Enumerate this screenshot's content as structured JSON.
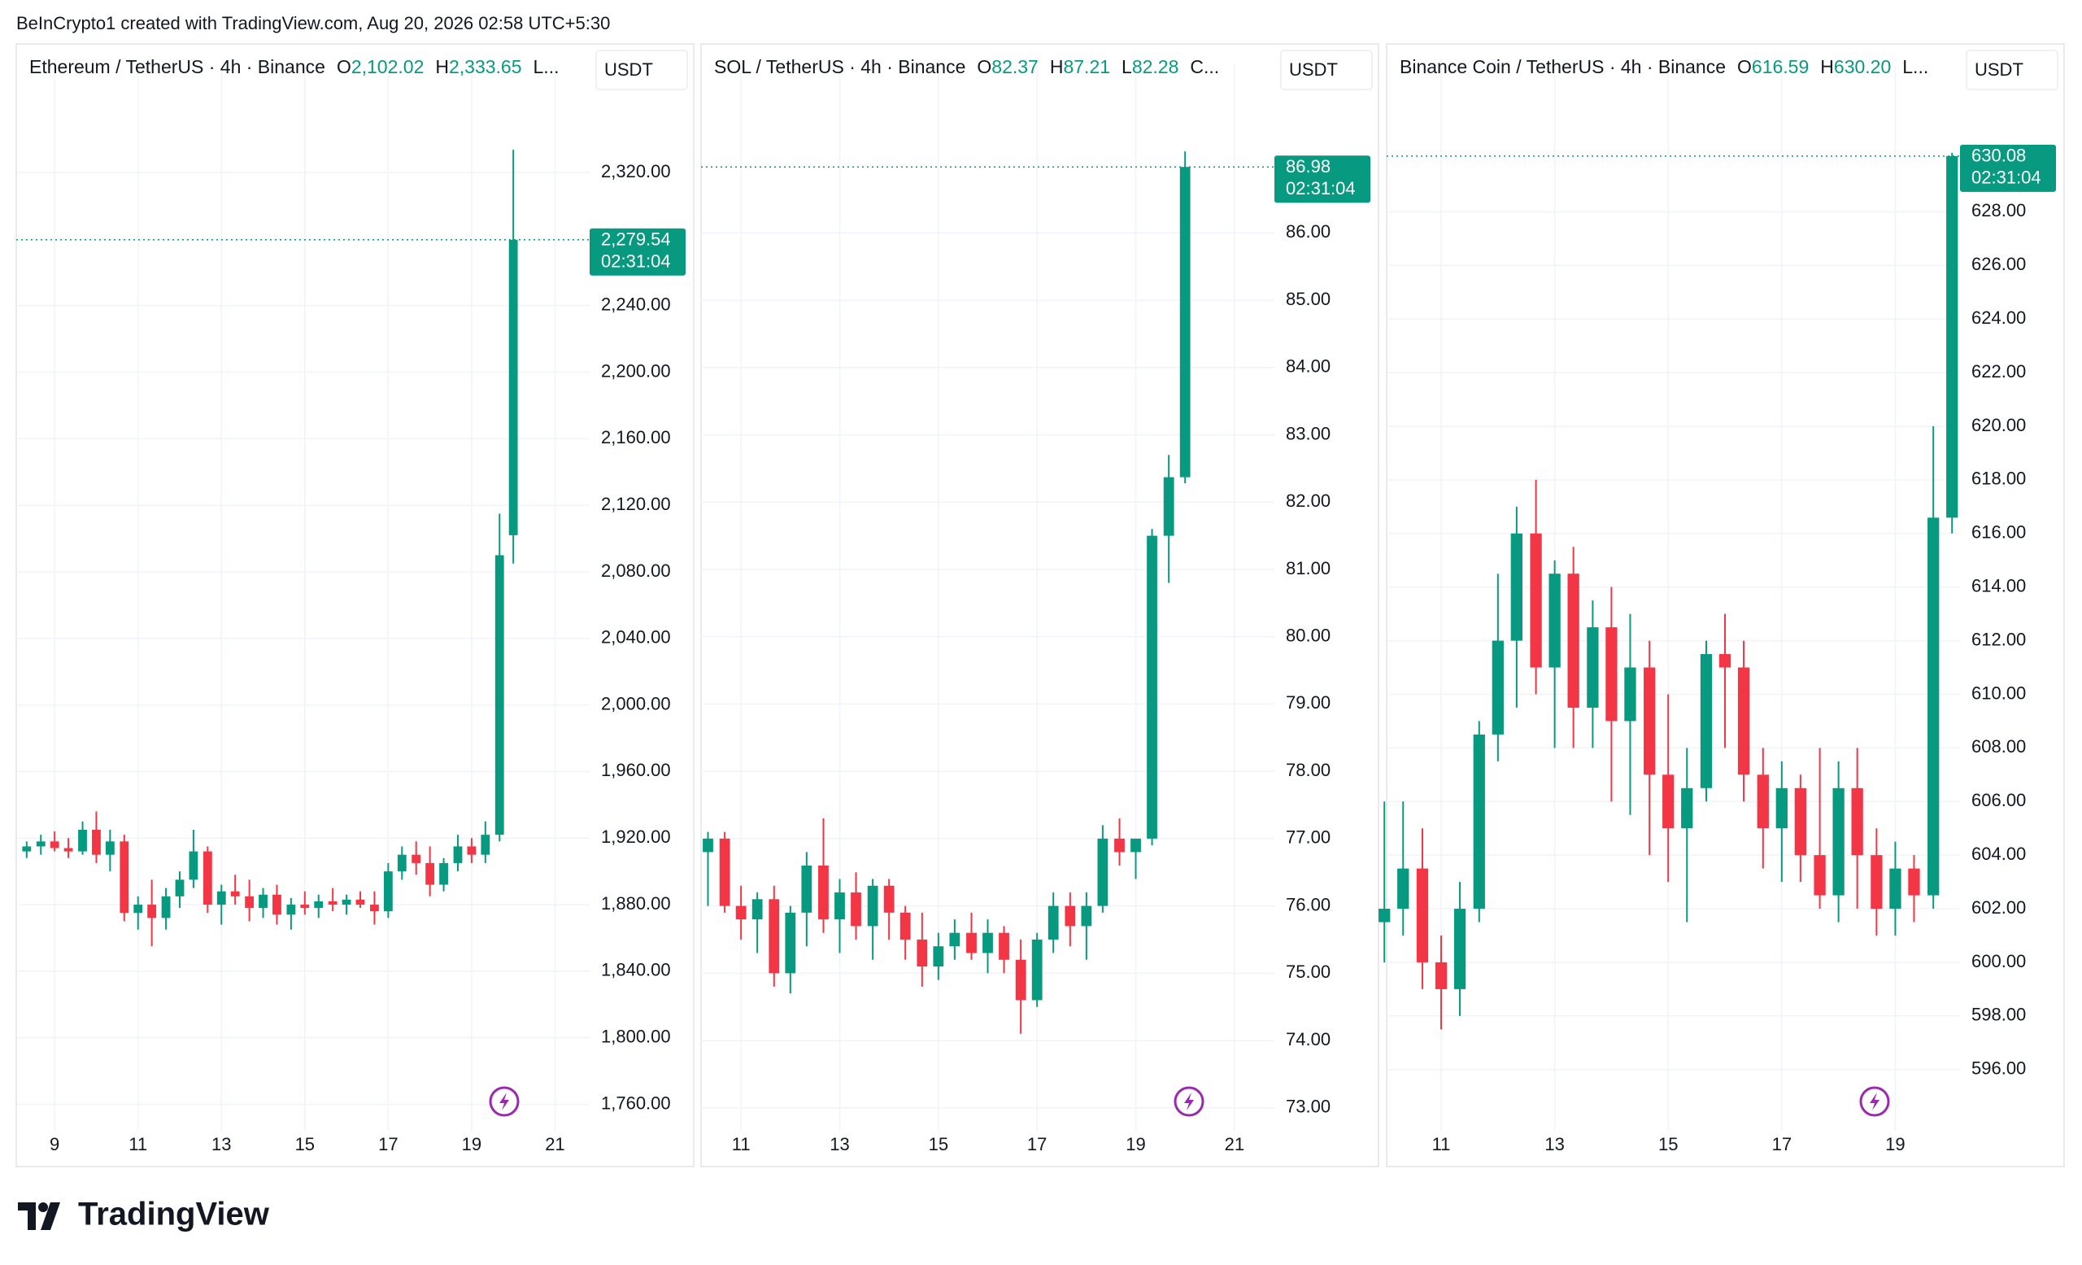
{
  "header": {
    "credit": "BeInCrypto1 created with TradingView.com, Aug 20, 2026 02:58 UTC+5:30"
  },
  "footer": {
    "brand": "TradingView"
  },
  "chart_data": [
    {
      "type": "candlestick",
      "title": "Ethereum / TetherUS · 4h · Binance",
      "ohlc_header": [
        {
          "key": "O",
          "price": {
            "value": 2102.02,
            "label": "2,102.02"
          }
        },
        {
          "key": "H",
          "price": {
            "value": 2333.65,
            "label": "2,333.65"
          }
        },
        {
          "key": "L..."
        }
      ],
      "currency": "USDT",
      "last_price": {
        "value": 2279.54,
        "label": "2,279.54"
      },
      "countdown": "02:31:04",
      "up_color": "#089981",
      "down_color": "#f23645",
      "grid": true,
      "xlim": [
        8.08,
        21.83
      ],
      "xticks": [
        9,
        11,
        13,
        15,
        17,
        19,
        21
      ],
      "ylim": [
        1749,
        2365
      ],
      "yticks": [
        {
          "value": 1760,
          "label": "1,760.00"
        },
        {
          "value": 1800,
          "label": "1,800.00"
        },
        {
          "value": 1840,
          "label": "1,840.00"
        },
        {
          "value": 1880,
          "label": "1,880.00"
        },
        {
          "value": 1920,
          "label": "1,920.00"
        },
        {
          "value": 1960,
          "label": "1,960.00"
        },
        {
          "value": 2000,
          "label": "2,000.00"
        },
        {
          "value": 2040,
          "label": "2,040.00"
        },
        {
          "value": 2080,
          "label": "2,080.00"
        },
        {
          "value": 2120,
          "label": "2,120.00"
        },
        {
          "value": 2160,
          "label": "2,160.00"
        },
        {
          "value": 2200,
          "label": "2,200.00"
        },
        {
          "value": 2240,
          "label": "2,240.00"
        },
        {
          "value": 2280,
          "label": "2,280.00"
        },
        {
          "value": 2320,
          "label": "2,320.00"
        }
      ],
      "x": [
        8.33,
        8.67,
        9.0,
        9.33,
        9.67,
        10.0,
        10.33,
        10.67,
        11.0,
        11.33,
        11.67,
        12.0,
        12.33,
        12.67,
        13.0,
        13.33,
        13.67,
        14.0,
        14.33,
        14.67,
        15.0,
        15.33,
        15.67,
        16.0,
        16.33,
        16.67,
        17.0,
        17.33,
        17.67,
        18.0,
        18.33,
        18.67,
        19.0,
        19.33,
        19.67,
        20.0
      ],
      "open": [
        1912,
        1915,
        1918,
        1914,
        1912,
        1925,
        1910,
        1918,
        1875,
        1880,
        1872,
        1885,
        1895,
        1912,
        1880,
        1888,
        1885,
        1878,
        1886,
        1874,
        1880,
        1878,
        1882,
        1880,
        1883,
        1880,
        1876,
        1900,
        1910,
        1905,
        1892,
        1905,
        1915,
        1910,
        1922,
        2102.02
      ],
      "high": [
        1918,
        1922,
        1924,
        1920,
        1930,
        1936,
        1925,
        1922,
        1885,
        1895,
        1890,
        1900,
        1925,
        1915,
        1892,
        1898,
        1895,
        1890,
        1892,
        1884,
        1888,
        1886,
        1890,
        1886,
        1888,
        1888,
        1905,
        1915,
        1918,
        1915,
        1908,
        1922,
        1920,
        1930,
        2115,
        2333.65
      ],
      "low": [
        1908,
        1910,
        1912,
        1908,
        1910,
        1905,
        1900,
        1870,
        1865,
        1855,
        1865,
        1878,
        1890,
        1875,
        1868,
        1880,
        1870,
        1872,
        1868,
        1865,
        1874,
        1872,
        1876,
        1874,
        1878,
        1868,
        1872,
        1895,
        1898,
        1885,
        1888,
        1900,
        1905,
        1905,
        1918,
        2085
      ],
      "close": [
        1915,
        1918,
        1914,
        1912,
        1925,
        1910,
        1918,
        1875,
        1880,
        1872,
        1885,
        1895,
        1912,
        1880,
        1888,
        1885,
        1878,
        1886,
        1874,
        1880,
        1878,
        1882,
        1880,
        1883,
        1880,
        1876,
        1900,
        1910,
        1905,
        1892,
        1905,
        1915,
        1910,
        1922,
        2090,
        2279.54
      ]
    },
    {
      "type": "candlestick",
      "title": "SOL / TetherUS · 4h · Binance",
      "ohlc_header": [
        {
          "key": "O",
          "price": 82.37
        },
        {
          "key": "H",
          "price": 87.21
        },
        {
          "key": "L",
          "price": 82.28
        },
        {
          "key": "C..."
        }
      ],
      "currency": "USDT",
      "last_price": 86.98,
      "countdown": "02:31:04",
      "up_color": "#089981",
      "down_color": "#f23645",
      "grid": true,
      "xlim": [
        10.19,
        21.81
      ],
      "xticks": [
        11,
        13,
        15,
        17,
        19,
        21
      ],
      "ylim": [
        72.78,
        88.01
      ],
      "yticks": [
        {
          "value": 73,
          "label": "73.00"
        },
        {
          "value": 74,
          "label": "74.00"
        },
        {
          "value": 75,
          "label": "75.00"
        },
        {
          "value": 76,
          "label": "76.00"
        },
        {
          "value": 77,
          "label": "77.00"
        },
        {
          "value": 78,
          "label": "78.00"
        },
        {
          "value": 79,
          "label": "79.00"
        },
        {
          "value": 80,
          "label": "80.00"
        },
        {
          "value": 81,
          "label": "81.00"
        },
        {
          "value": 82,
          "label": "82.00"
        },
        {
          "value": 83,
          "label": "83.00"
        },
        {
          "value": 84,
          "label": "84.00"
        },
        {
          "value": 85,
          "label": "85.00"
        },
        {
          "value": 86,
          "label": "86.00"
        }
      ],
      "x": [
        10.33,
        10.67,
        11.0,
        11.33,
        11.67,
        12.0,
        12.33,
        12.67,
        13.0,
        13.33,
        13.67,
        14.0,
        14.33,
        14.67,
        15.0,
        15.33,
        15.67,
        16.0,
        16.33,
        16.67,
        17.0,
        17.33,
        17.67,
        18.0,
        18.33,
        18.67,
        19.0,
        19.33,
        19.67,
        20.0
      ],
      "open": [
        76.8,
        77.0,
        76.0,
        75.8,
        76.1,
        75.0,
        75.9,
        76.6,
        75.8,
        76.2,
        75.7,
        76.3,
        75.9,
        75.5,
        75.1,
        75.4,
        75.6,
        75.3,
        75.6,
        75.2,
        74.6,
        75.5,
        76.0,
        75.7,
        76.0,
        77.0,
        76.8,
        77.0,
        81.5,
        82.37
      ],
      "high": [
        77.1,
        77.1,
        76.3,
        76.2,
        76.3,
        76.0,
        76.8,
        77.3,
        76.4,
        76.5,
        76.4,
        76.4,
        76.0,
        75.9,
        75.6,
        75.8,
        75.9,
        75.8,
        75.7,
        75.5,
        75.6,
        76.2,
        76.2,
        76.2,
        77.2,
        77.3,
        77.0,
        81.6,
        82.7,
        87.21
      ],
      "low": [
        76.0,
        75.9,
        75.5,
        75.3,
        74.8,
        74.7,
        75.4,
        75.6,
        75.3,
        75.5,
        75.2,
        75.5,
        75.2,
        74.8,
        74.9,
        75.2,
        75.2,
        75.0,
        75.0,
        74.1,
        74.5,
        75.3,
        75.4,
        75.2,
        75.9,
        76.6,
        76.4,
        76.9,
        80.8,
        82.28
      ],
      "close": [
        77.0,
        76.0,
        75.8,
        76.1,
        75.0,
        75.9,
        76.6,
        75.8,
        76.2,
        75.7,
        76.3,
        75.9,
        75.5,
        75.1,
        75.4,
        75.6,
        75.3,
        75.6,
        75.2,
        74.6,
        75.5,
        76.0,
        75.7,
        76.0,
        77.0,
        76.8,
        77.0,
        81.5,
        82.37,
        86.98
      ]
    },
    {
      "type": "candlestick",
      "title": "Binance Coin / TetherUS · 4h · Binance",
      "ohlc_header": [
        {
          "key": "O",
          "price": 616.59
        },
        {
          "key": "H",
          "price": {
            "value": 630.2,
            "label": "630.20"
          }
        },
        {
          "key": "L..."
        }
      ],
      "currency": "USDT",
      "last_price": 630.08,
      "countdown": "02:31:04",
      "up_color": "#089981",
      "down_color": "#f23645",
      "grid": true,
      "xlim": [
        10.04,
        20.14
      ],
      "xticks": [
        11,
        13,
        15,
        17,
        19
      ],
      "ylim": [
        594.02,
        632.26
      ],
      "yticks": [
        {
          "value": 596,
          "label": "596.00"
        },
        {
          "value": 598,
          "label": "598.00"
        },
        {
          "value": 600,
          "label": "600.00"
        },
        {
          "value": 602,
          "label": "602.00"
        },
        {
          "value": 604,
          "label": "604.00"
        },
        {
          "value": 606,
          "label": "606.00"
        },
        {
          "value": 608,
          "label": "608.00"
        },
        {
          "value": 610,
          "label": "610.00"
        },
        {
          "value": 612,
          "label": "612.00"
        },
        {
          "value": 614,
          "label": "614.00"
        },
        {
          "value": 616,
          "label": "616.00"
        },
        {
          "value": 618,
          "label": "618.00"
        },
        {
          "value": 620,
          "label": "620.00"
        },
        {
          "value": 622,
          "label": "622.00"
        },
        {
          "value": 624,
          "label": "624.00"
        },
        {
          "value": 626,
          "label": "626.00"
        },
        {
          "value": 628,
          "label": "628.00"
        }
      ],
      "x": [
        10.0,
        10.33,
        10.67,
        11.0,
        11.33,
        11.67,
        12.0,
        12.33,
        12.67,
        13.0,
        13.33,
        13.67,
        14.0,
        14.33,
        14.67,
        15.0,
        15.33,
        15.67,
        16.0,
        16.33,
        16.67,
        17.0,
        17.33,
        17.67,
        18.0,
        18.33,
        18.67,
        19.0,
        19.33,
        19.67,
        20.0
      ],
      "open": [
        601.5,
        602,
        603.5,
        600,
        599,
        602,
        608.5,
        612,
        616,
        611,
        614.5,
        609.5,
        612.5,
        609,
        611,
        607,
        605,
        606.5,
        611.5,
        611,
        607,
        605,
        606.5,
        604,
        602.5,
        606.5,
        604,
        602,
        603.5,
        602.5,
        616.59
      ],
      "high": [
        606,
        606,
        605,
        601,
        603,
        609,
        614.5,
        617,
        618,
        615,
        615.5,
        613.5,
        614,
        613,
        612,
        610,
        608,
        612,
        613,
        612,
        608,
        607.5,
        607,
        608,
        607.5,
        608,
        605,
        604.5,
        604,
        620,
        630.2
      ],
      "low": [
        600,
        601,
        599,
        597.5,
        598,
        601.5,
        607.5,
        609.5,
        610,
        608,
        608,
        608,
        606,
        605.5,
        604,
        603,
        601.5,
        606,
        608,
        606,
        603.5,
        603,
        603,
        602,
        601.5,
        602,
        601,
        601,
        601.5,
        602,
        616
      ],
      "close": [
        602,
        603.5,
        600,
        599,
        602,
        608.5,
        612,
        616,
        611,
        614.5,
        609.5,
        612.5,
        609,
        611,
        607,
        605,
        606.5,
        611.5,
        611,
        607,
        605,
        606.5,
        604,
        602.5,
        606.5,
        604,
        602,
        603.5,
        602.5,
        616.59,
        630.08
      ]
    }
  ]
}
